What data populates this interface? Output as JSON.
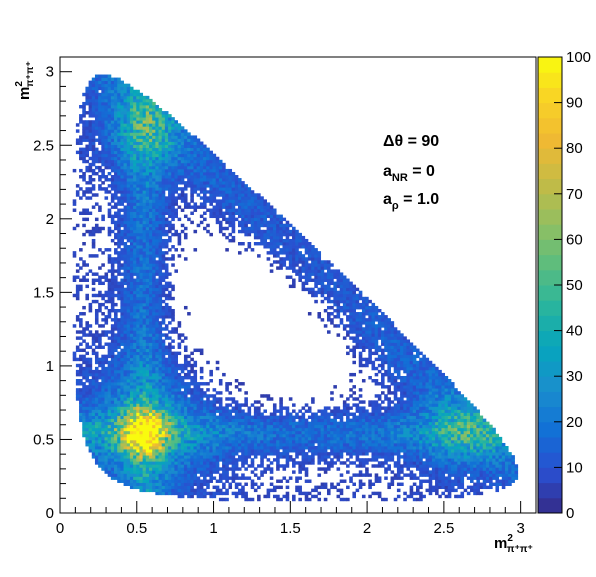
{
  "chart_data": {
    "type": "heatmap",
    "title": "",
    "xlabel": {
      "base": "m",
      "sup": "2",
      "sub": "π⁺π⁺"
    },
    "ylabel": {
      "base": "m",
      "sup": "2",
      "sub": "π⁺π⁺"
    },
    "xlim": [
      0,
      3.1
    ],
    "ylim": [
      0,
      3.1
    ],
    "x_ticks": [
      0,
      0.5,
      1,
      1.5,
      2,
      2.5,
      3
    ],
    "x_tick_labels": [
      "0",
      "0.5",
      "1",
      "1.5",
      "2",
      "2.5",
      "3"
    ],
    "y_ticks": [
      0,
      0.5,
      1,
      1.5,
      2,
      2.5,
      3
    ],
    "y_tick_labels": [
      "0",
      "0.5",
      "1",
      "1.5",
      "2",
      "2.5",
      "3"
    ],
    "colorbar": {
      "min": 0,
      "max": 100,
      "ticks": [
        0,
        10,
        20,
        30,
        40,
        50,
        60,
        70,
        80,
        90,
        100
      ],
      "tick_labels": [
        "0",
        "10",
        "20",
        "30",
        "40",
        "50",
        "60",
        "70",
        "80",
        "90",
        "100"
      ],
      "palette": [
        "#352a87",
        "#2a4fd0",
        "#1270d6",
        "#1a8ecd",
        "#06a5bd",
        "#2ab59d",
        "#5cbd7e",
        "#93bf60",
        "#c5bb45",
        "#f0b933",
        "#f9d326",
        "#f9fb0e"
      ]
    },
    "annotations": [
      {
        "text": "Δθ = 90"
      },
      {
        "base": "a",
        "sub": "NR",
        "rest": " = 0"
      },
      {
        "base": "a",
        "sub": "ρ",
        "rest": " = 1.0"
      }
    ],
    "grid": false,
    "legend": "none",
    "hotspots": [
      {
        "x": 0.55,
        "y": 0.55,
        "level": 85
      },
      {
        "x": 0.55,
        "y": 2.6,
        "level": 45
      },
      {
        "x": 2.6,
        "y": 0.55,
        "level": 40
      }
    ],
    "binning": {
      "nx": 150,
      "ny": 150,
      "bin_width": 0.0207
    }
  }
}
